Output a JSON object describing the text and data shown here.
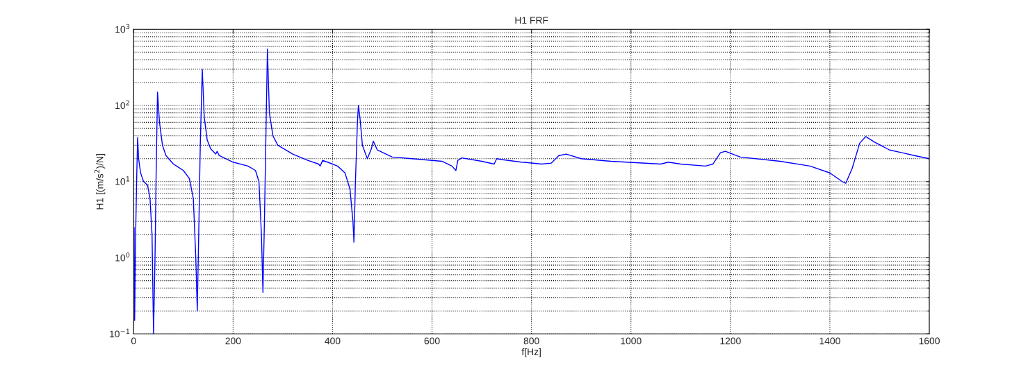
{
  "chart_data": {
    "type": "line",
    "title": "H1 FRF",
    "xlabel": "f[Hz]",
    "ylabel": "H1 [(m/s$^{2}$)/N]",
    "log": "y",
    "grid": true,
    "marker": "none",
    "line_style": "solid",
    "xlim": [
      0,
      1600
    ],
    "xticks": [
      0,
      200,
      400,
      600,
      800,
      1000,
      1200,
      1400,
      1600
    ],
    "ylim": [
      0.1,
      1000
    ],
    "yticks": [
      {
        "value": 0.1,
        "label": "10$^{−1}$"
      },
      {
        "value": 1,
        "label": "10$^{0}$"
      },
      {
        "value": 10,
        "label": "10$^{1}$"
      },
      {
        "value": 100,
        "label": "10$^{2}$"
      },
      {
        "value": 1000,
        "label": "10$^{3}$"
      }
    ],
    "series": [
      {
        "color": "#0000ff",
        "x": [
          1,
          2,
          4,
          6,
          8,
          10,
          14,
          20,
          28,
          33,
          37,
          40,
          43,
          45,
          48,
          52,
          58,
          65,
          80,
          100,
          112,
          120,
          125,
          128,
          130,
          134,
          138,
          142,
          148,
          155,
          165,
          168,
          172,
          200,
          230,
          245,
          252,
          257,
          260,
          263,
          266,
          269,
          273,
          280,
          290,
          320,
          350,
          372,
          375,
          380,
          390,
          410,
          425,
          435,
          441,
          443,
          446,
          450,
          452,
          455,
          460,
          470,
          478,
          482,
          490,
          520,
          560,
          620,
          640,
          648,
          652,
          660,
          700,
          725,
          730,
          740,
          780,
          790,
          820,
          840,
          855,
          870,
          900,
          960,
          1060,
          1075,
          1100,
          1150,
          1165,
          1180,
          1190,
          1220,
          1300,
          1360,
          1400,
          1425,
          1432,
          1445,
          1460,
          1472,
          1490,
          1520,
          1545,
          1570,
          1600
        ],
        "values": [
          2.5,
          0.15,
          2,
          10,
          38,
          20,
          13,
          10,
          9,
          6,
          2,
          0.1,
          1,
          10,
          150,
          60,
          30,
          22,
          17,
          14,
          11,
          6,
          1,
          0.2,
          1,
          30,
          300,
          70,
          35,
          27,
          23,
          25,
          22,
          18,
          16,
          14,
          10,
          2,
          0.35,
          3,
          40,
          550,
          80,
          40,
          30,
          23,
          19,
          17,
          16,
          19,
          18,
          16,
          13,
          8,
          3,
          1.6,
          10,
          60,
          100,
          70,
          30,
          20,
          27,
          34,
          26,
          21,
          20,
          18.5,
          16,
          14,
          19,
          20.5,
          18.5,
          17,
          20,
          19.5,
          18,
          17.8,
          17,
          17.5,
          22,
          23,
          20,
          18.5,
          17,
          18,
          17,
          16,
          17,
          24,
          25,
          21,
          18.5,
          16,
          13,
          10,
          9.5,
          15,
          32,
          39,
          33,
          26,
          24,
          22,
          20
        ]
      }
    ]
  }
}
